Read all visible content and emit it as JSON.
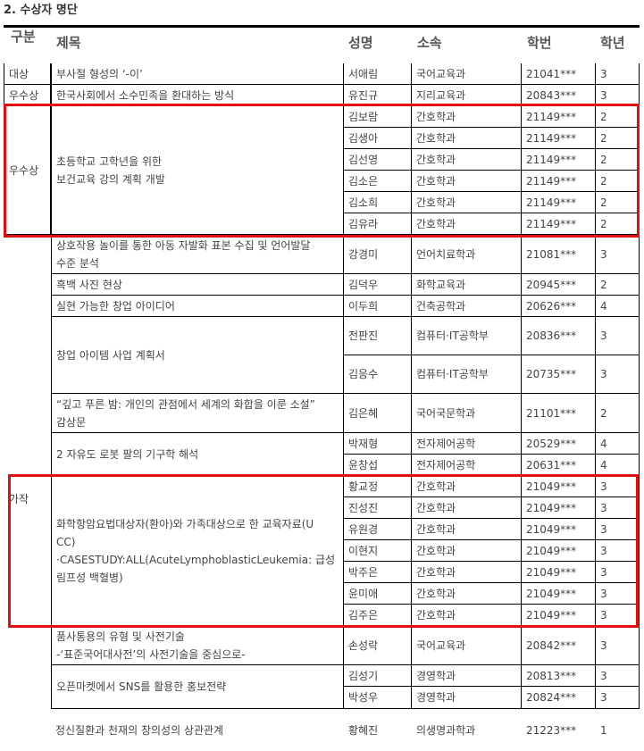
{
  "section_title": "2. 수상자 명단",
  "headers": {
    "category": "구분",
    "title": "제목",
    "name": "성명",
    "dept": "소속",
    "student_id": "학번",
    "year": "학년"
  },
  "highlight_color": "#e01010",
  "honorable_label": "가작",
  "entries": [
    {
      "category": "대상",
      "title": [
        "부사절 형성의 ‘-이’"
      ],
      "members": [
        {
          "name": "서애림",
          "dept": "국어교육과",
          "id": "21041***",
          "year": "3"
        }
      ]
    },
    {
      "category": "우수상",
      "title": [
        "한국사회에서 소수민족을 환대하는 방식"
      ],
      "members": [
        {
          "name": "유진규",
          "dept": "지리교육과",
          "id": "20843***",
          "year": "3"
        }
      ]
    },
    {
      "category": "우수상",
      "title": [
        "초등학교 고학년을 위한",
        "보건교육 강의 계획 개발"
      ],
      "members": [
        {
          "name": "김보람",
          "dept": "간호학과",
          "id": "21149***",
          "year": "2"
        },
        {
          "name": "김생아",
          "dept": "간호학과",
          "id": "21149***",
          "year": "2"
        },
        {
          "name": "김선영",
          "dept": "간호학과",
          "id": "21149***",
          "year": "2"
        },
        {
          "name": "김소은",
          "dept": "간호학과",
          "id": "21149***",
          "year": "2"
        },
        {
          "name": "김소희",
          "dept": "간호학과",
          "id": "21149***",
          "year": "2"
        },
        {
          "name": "김유라",
          "dept": "간호학과",
          "id": "21149***",
          "year": "2"
        }
      ]
    },
    {
      "category": "",
      "title": [
        "상호작용 놀이를 통한 아동 자발화 표본 수집 및 언어발달",
        "수준 분석"
      ],
      "members": [
        {
          "name": "강경미",
          "dept": "언어치료학과",
          "id": "21081***",
          "year": "3"
        }
      ]
    },
    {
      "category": "",
      "title": [
        "흑백 사진 현상"
      ],
      "members": [
        {
          "name": "김덕우",
          "dept": "화학교육과",
          "id": "20945***",
          "year": "2"
        }
      ]
    },
    {
      "category": "",
      "title": [
        "실현 가능한 창업 아이디어"
      ],
      "members": [
        {
          "name": "이두희",
          "dept": "건축공학과",
          "id": "20626***",
          "year": "4"
        }
      ]
    },
    {
      "category": "",
      "title": [
        "창업 아이템 사업 계획서"
      ],
      "members": [
        {
          "name": "전판진",
          "dept": "컴퓨터·IT공학부",
          "id": "20836***",
          "year": "3"
        },
        {
          "name": "김응수",
          "dept": "컴퓨터·IT공학부",
          "id": "20735***",
          "year": "3"
        }
      ]
    },
    {
      "category": "",
      "title": [
        "“깊고 푸른 밤: 개인의 관점에서 세계의 화합을 이룬 소설”",
        "감상문"
      ],
      "members": [
        {
          "name": "김은혜",
          "dept": "국어국문학과",
          "id": "21101***",
          "year": "2"
        }
      ]
    },
    {
      "category": "",
      "title": [
        "2 자유도 로봇 팔의 기구학 해석"
      ],
      "members": [
        {
          "name": "박재형",
          "dept": "전자제어공학",
          "id": "20529***",
          "year": "4"
        },
        {
          "name": "윤창섭",
          "dept": "전자제어공학",
          "id": "20631***",
          "year": "4"
        }
      ]
    },
    {
      "category": "",
      "title": [
        "화학항암요법대상자(환아)와 가족대상으로 한 교육자료(U",
        "CC)",
        "·CASESTUDY:ALL(AcuteLymphoblasticLeukemia: 급성",
        "림프성 백혈병)"
      ],
      "members": [
        {
          "name": "황교정",
          "dept": "간호학과",
          "id": "21049***",
          "year": "3"
        },
        {
          "name": "진성진",
          "dept": "간호학과",
          "id": "21049***",
          "year": "3"
        },
        {
          "name": "유원경",
          "dept": "간호학과",
          "id": "21049***",
          "year": "3"
        },
        {
          "name": "이현지",
          "dept": "간호학과",
          "id": "21049***",
          "year": "3"
        },
        {
          "name": "박주은",
          "dept": "간호학과",
          "id": "21049***",
          "year": "3"
        },
        {
          "name": "윤미애",
          "dept": "간호학과",
          "id": "21049***",
          "year": "3"
        },
        {
          "name": "김주은",
          "dept": "간호학과",
          "id": "21049***",
          "year": "3"
        }
      ]
    },
    {
      "category": "",
      "title": [
        "품사통용의 유형 및 사전기술",
        "-‘표준국어대사전’의 사전기술을 중심으로-"
      ],
      "members": [
        {
          "name": "손성락",
          "dept": "국어교육과",
          "id": "20842***",
          "year": "3"
        }
      ]
    },
    {
      "category": "",
      "title": [
        "오픈마켓에서 SNS를 활용한 홍보전략"
      ],
      "members": [
        {
          "name": "김성기",
          "dept": "경영학과",
          "id": "20813***",
          "year": "3"
        },
        {
          "name": "박성우",
          "dept": "경영학과",
          "id": "20824***",
          "year": "3"
        }
      ]
    },
    {
      "category": "",
      "title": [
        "정신질환과 천재의 창의성의 상관관계"
      ],
      "members": [
        {
          "name": "황혜진",
          "dept": "의생명과학과",
          "id": "21223***",
          "year": "1"
        }
      ]
    }
  ]
}
